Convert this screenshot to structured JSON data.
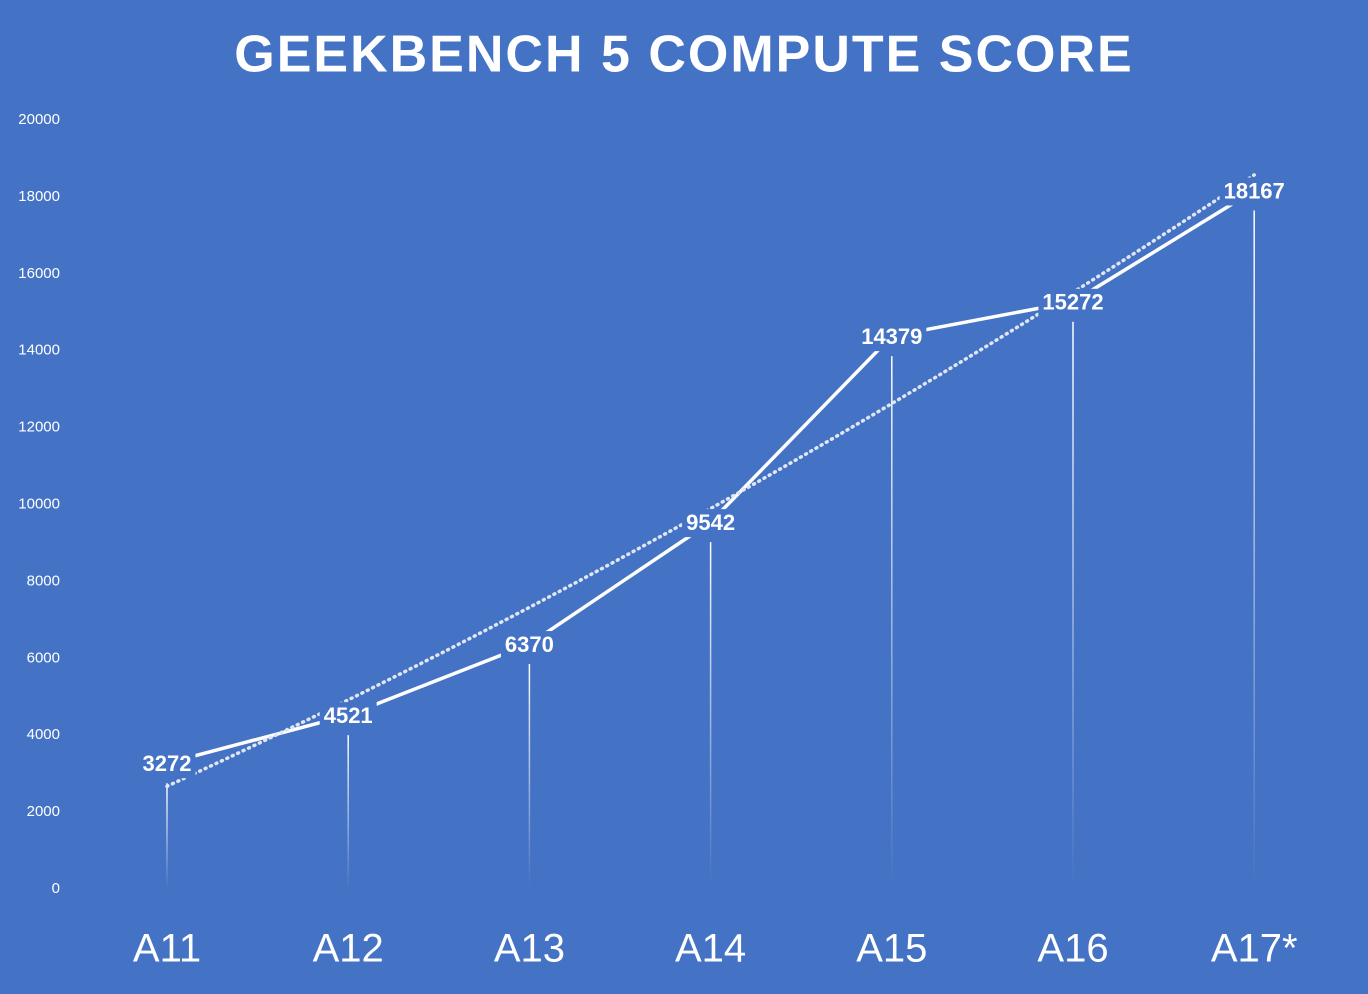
{
  "chart_data": {
    "type": "line",
    "title": "GEEKBENCH 5 COMPUTE SCORE",
    "categories": [
      "A11",
      "A12",
      "A13",
      "A14",
      "A15",
      "A16",
      "A17*"
    ],
    "values": [
      3272,
      4521,
      6370,
      9542,
      14379,
      15272,
      18167
    ],
    "color": "#ffffff",
    "background": "#4472c4",
    "ylim": [
      0,
      20000
    ],
    "yticks": [
      0,
      2000,
      4000,
      6000,
      8000,
      10000,
      12000,
      14000,
      16000,
      18000,
      20000
    ],
    "grid": false,
    "data_labels": true,
    "drop_lines": true,
    "trendline": "polynomial"
  }
}
